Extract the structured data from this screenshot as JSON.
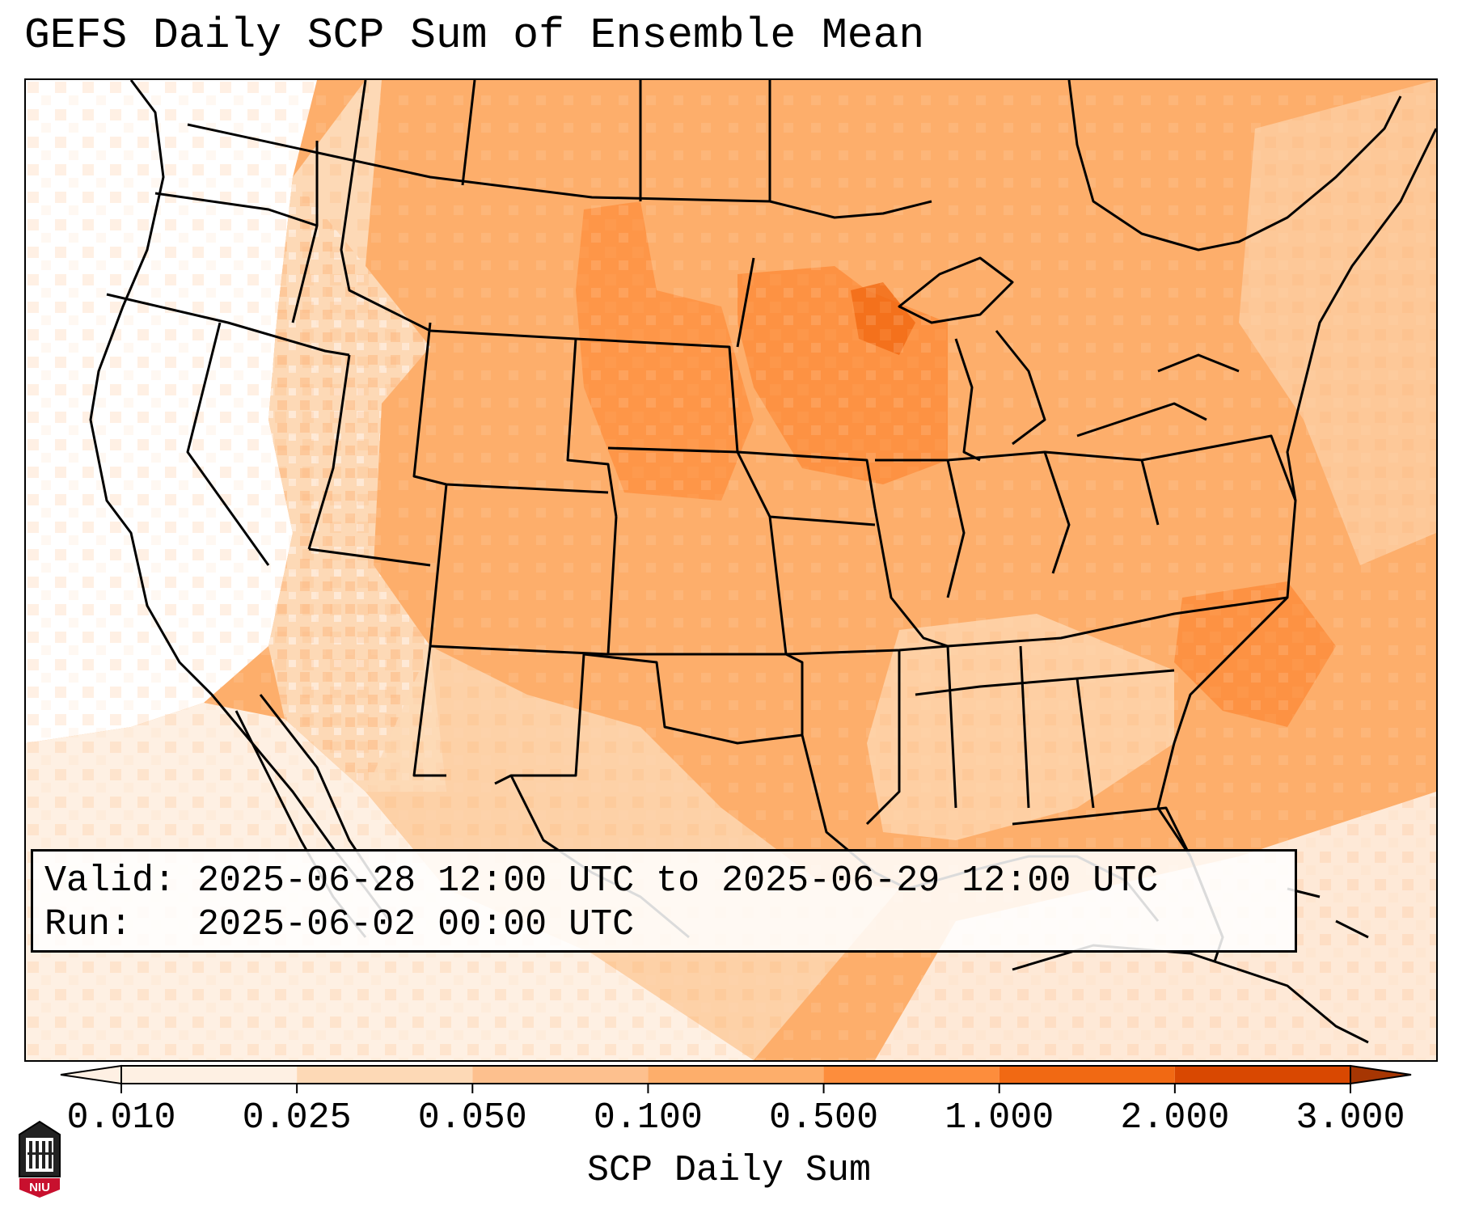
{
  "title": "GEFS Daily SCP Sum of Ensemble Mean",
  "info": {
    "valid_label": "Valid:",
    "valid_value": "2025-06-28 12:00 UTC to 2025-06-29 12:00 UTC",
    "run_label": "Run:",
    "run_value": "2025-06-02 00:00 UTC"
  },
  "colorbar": {
    "title": "SCP Daily Sum",
    "ticks": [
      "0.010",
      "0.025",
      "0.050",
      "0.100",
      "0.500",
      "1.000",
      "2.000",
      "3.000"
    ],
    "colors": [
      "#fef0e3",
      "#fdd9b6",
      "#fdc08e",
      "#fdae6b",
      "#fd8d3c",
      "#f16913",
      "#d94801",
      "#a63603"
    ],
    "extend": "both"
  },
  "map": {
    "region": "CONUS",
    "field": "SCP daily sum",
    "land_base_color": "#fdae6b",
    "low_color": "#ffffff",
    "outline_color": "#000000"
  },
  "logo": {
    "text": "NIU",
    "icon": "niu-university-logo"
  }
}
